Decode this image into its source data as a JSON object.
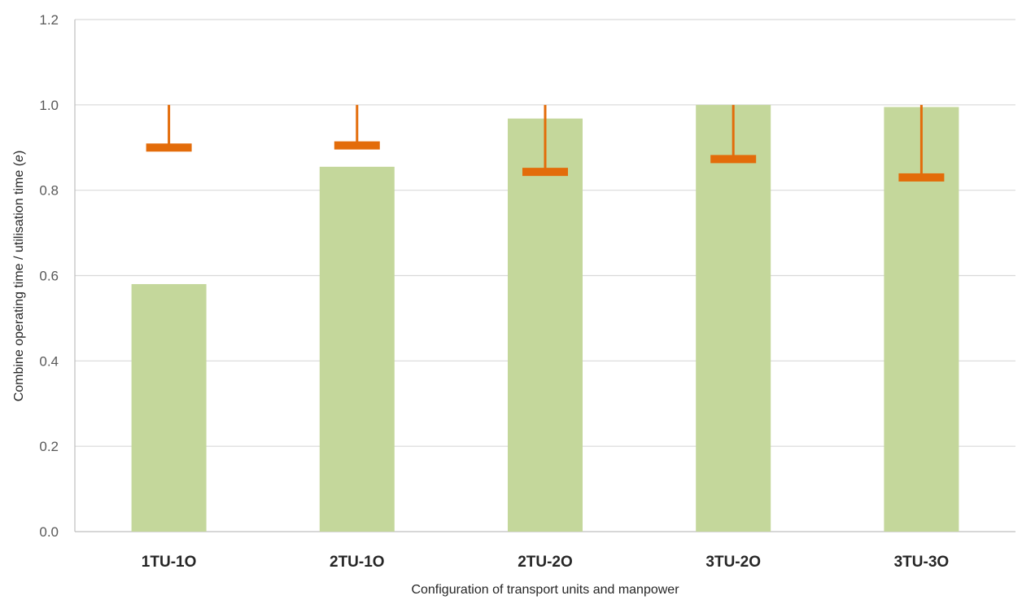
{
  "chart_data": {
    "type": "bar",
    "title": "",
    "xlabel": "Configuration of transport units and manpower",
    "ylabel": "Combine operating time / utilisation time (e)",
    "ylim": [
      0,
      1.2
    ],
    "yticks": [
      "0.0",
      "0.2",
      "0.4",
      "0.6",
      "0.8",
      "1.0",
      "1.2"
    ],
    "grid": true,
    "categories": [
      "1TU-1O",
      "2TU-1O",
      "2TU-2O",
      "3TU-2O",
      "3TU-3O"
    ],
    "series": [
      {
        "values": [
          0.58,
          0.855,
          0.968,
          1.0,
          0.995
        ]
      }
    ],
    "error_markers": [
      {
        "marker": 0.9,
        "upper": 1.0
      },
      {
        "marker": 0.905,
        "upper": 1.0
      },
      {
        "marker": 0.843,
        "upper": 1.0
      },
      {
        "marker": 0.873,
        "upper": 1.0
      },
      {
        "marker": 0.83,
        "upper": 1.0
      }
    ],
    "colors": {
      "bar": "#c4d79b",
      "error": "#e36c0a",
      "grid": "#d9d9d9",
      "axis": "#bfbfbf"
    }
  }
}
